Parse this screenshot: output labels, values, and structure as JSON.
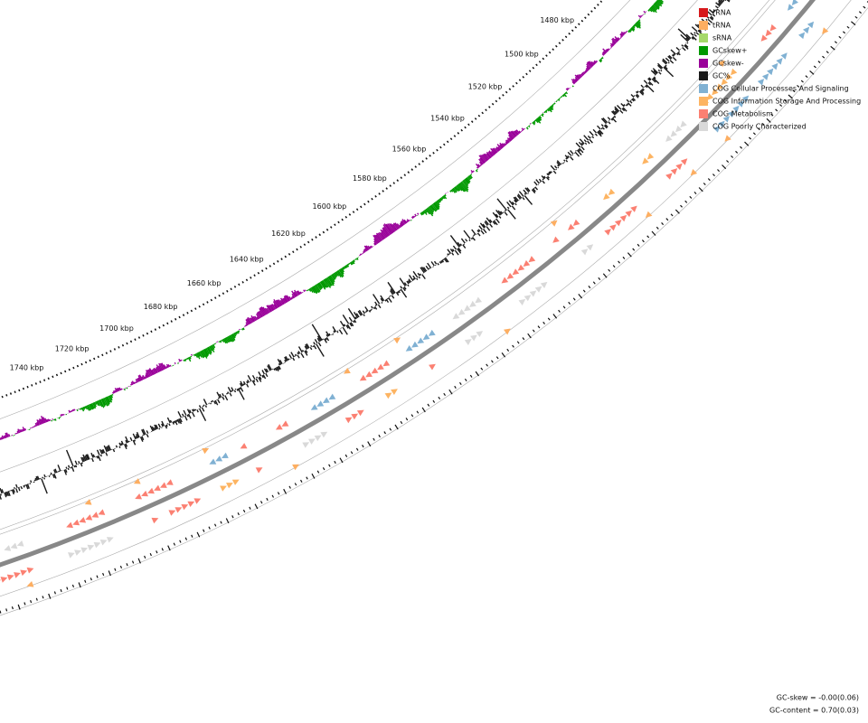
{
  "ruler_labels": [
    "1480 kbp",
    "1500 kbp",
    "1520 kbp",
    "1540 kbp",
    "1560 kbp",
    "1580 kbp",
    "1600 kbp",
    "1620 kbp",
    "1640 kbp",
    "1660 kbp",
    "1680 kbp",
    "1700 kbp",
    "1720 kbp",
    "1740 kbp"
  ],
  "legend": [
    {
      "label": "rRNA",
      "color": "#d7191c"
    },
    {
      "label": "tRNA",
      "color": "#fdae61"
    },
    {
      "label": "sRNA",
      "color": "#a6d96a"
    },
    {
      "label": "GCskew+",
      "color": "#009900"
    },
    {
      "label": "GCskew-",
      "color": "#990099"
    },
    {
      "label": "GC%",
      "color": "#1a1a1a"
    },
    {
      "label": "COG Cellular Processes And Signaling",
      "color": "#80b1d3"
    },
    {
      "label": "COG Information Storage And Processing",
      "color": "#fdb462"
    },
    {
      "label": "COG Metabolism",
      "color": "#fb8072"
    },
    {
      "label": "COG Poorly Characterized",
      "color": "#d9d9d9"
    }
  ],
  "footer": [
    "GC-skew = -0.00(0.06)",
    "GC-content = 0.70(0.03)"
  ]
}
